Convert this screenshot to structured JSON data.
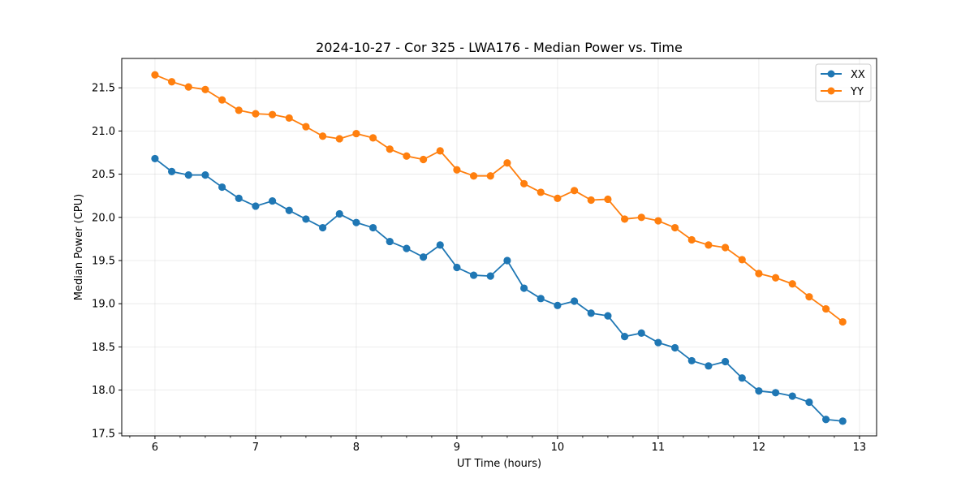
{
  "chart_data": {
    "type": "line",
    "title": "2024-10-27 - Cor 325 - LWA176 - Median Power vs. Time",
    "xlabel": "UT Time (hours)",
    "ylabel": "Median Power (CPU)",
    "xlim": [
      5.67,
      13.17
    ],
    "ylim": [
      17.47,
      21.84
    ],
    "xticks": [
      6,
      7,
      8,
      9,
      10,
      11,
      12,
      13
    ],
    "yticks": [
      17.5,
      18.0,
      18.5,
      19.0,
      19.5,
      20.0,
      20.5,
      21.0,
      21.5
    ],
    "ytick_labels": [
      "17.5",
      "18.0",
      "18.5",
      "19.0",
      "19.5",
      "20.0",
      "20.5",
      "21.0",
      "21.5"
    ],
    "minor_xtick_step": 0.25,
    "grid": true,
    "legend_position": "top-right",
    "x": [
      6.0,
      6.1667,
      6.3333,
      6.5,
      6.6667,
      6.8333,
      7.0,
      7.1667,
      7.3333,
      7.5,
      7.6667,
      7.8333,
      8.0,
      8.1667,
      8.3333,
      8.5,
      8.6667,
      8.8333,
      9.0,
      9.1667,
      9.3333,
      9.5,
      9.6667,
      9.8333,
      10.0,
      10.1667,
      10.3333,
      10.5,
      10.6667,
      10.8333,
      11.0,
      11.1667,
      11.3333,
      11.5,
      11.6667,
      11.8333,
      12.0,
      12.1667,
      12.3333,
      12.5,
      12.6667,
      12.8333
    ],
    "series": [
      {
        "name": "XX",
        "color": "#1f77b4",
        "values": [
          20.68,
          20.53,
          20.49,
          20.49,
          20.35,
          20.22,
          20.13,
          20.19,
          20.08,
          19.98,
          19.88,
          20.04,
          19.94,
          19.88,
          19.72,
          19.64,
          19.54,
          19.68,
          19.42,
          19.33,
          19.32,
          19.5,
          19.18,
          19.06,
          18.98,
          19.03,
          18.89,
          18.86,
          18.62,
          18.66,
          18.55,
          18.49,
          18.34,
          18.28,
          18.33,
          18.14,
          17.99,
          17.97,
          17.93,
          17.86,
          17.66,
          17.64
        ]
      },
      {
        "name": "YY",
        "color": "#ff7f0e",
        "values": [
          21.65,
          21.57,
          21.51,
          21.48,
          21.36,
          21.24,
          21.2,
          21.19,
          21.15,
          21.05,
          20.94,
          20.91,
          20.97,
          20.92,
          20.79,
          20.71,
          20.67,
          20.77,
          20.55,
          20.48,
          20.48,
          20.63,
          20.39,
          20.29,
          20.22,
          20.31,
          20.2,
          20.21,
          19.98,
          20.0,
          19.96,
          19.88,
          19.74,
          19.68,
          19.65,
          19.51,
          19.35,
          19.3,
          19.23,
          19.08,
          18.94,
          18.79
        ]
      }
    ]
  }
}
